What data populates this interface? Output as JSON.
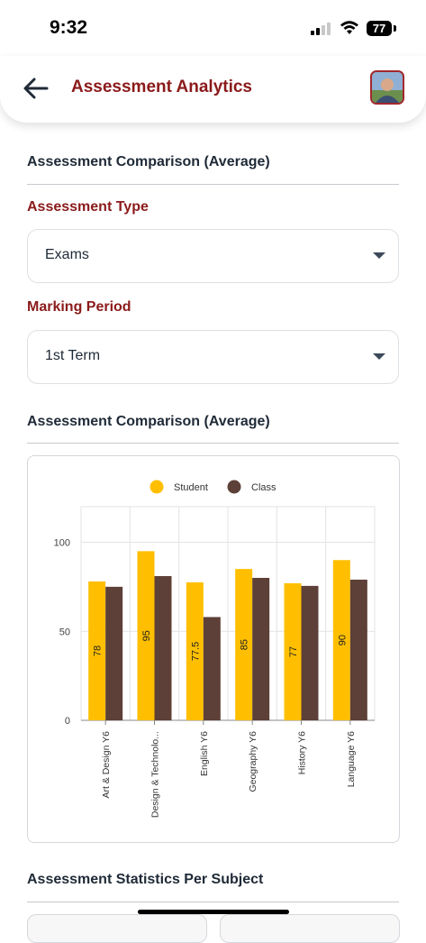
{
  "status_bar": {
    "time": "9:32",
    "battery": "77"
  },
  "header": {
    "title": "Assessment Analytics"
  },
  "sections": {
    "comparison_filter_title": "Assessment Comparison (Average)",
    "chart_title": "Assessment Comparison (Average)",
    "stats_title": "Assessment Statistics Per Subject"
  },
  "filters": {
    "assessment_type_label": "Assessment Type",
    "assessment_type_value": "Exams",
    "marking_period_label": "Marking Period",
    "marking_period_value": "1st Term"
  },
  "colors": {
    "accent": "#8b1a1a",
    "student": "#ffbf00",
    "class": "#5d4037"
  },
  "chart_data": {
    "type": "bar",
    "categories": [
      "Art & Design Y6",
      "Design & Technolo...",
      "English Y6",
      "Geography Y6",
      "History Y6",
      "Language Y6"
    ],
    "series": [
      {
        "name": "Student",
        "values": [
          78,
          95,
          77.5,
          85,
          77,
          90
        ],
        "labels": [
          "78",
          "95",
          "77.5",
          "85",
          "77",
          "90"
        ]
      },
      {
        "name": "Class",
        "values": [
          75,
          81,
          58,
          80,
          75.5,
          79
        ]
      }
    ],
    "yticks": [
      "0",
      "50",
      "100"
    ],
    "ylim": [
      0,
      120
    ],
    "legend_position": "top-center",
    "grid": true
  }
}
